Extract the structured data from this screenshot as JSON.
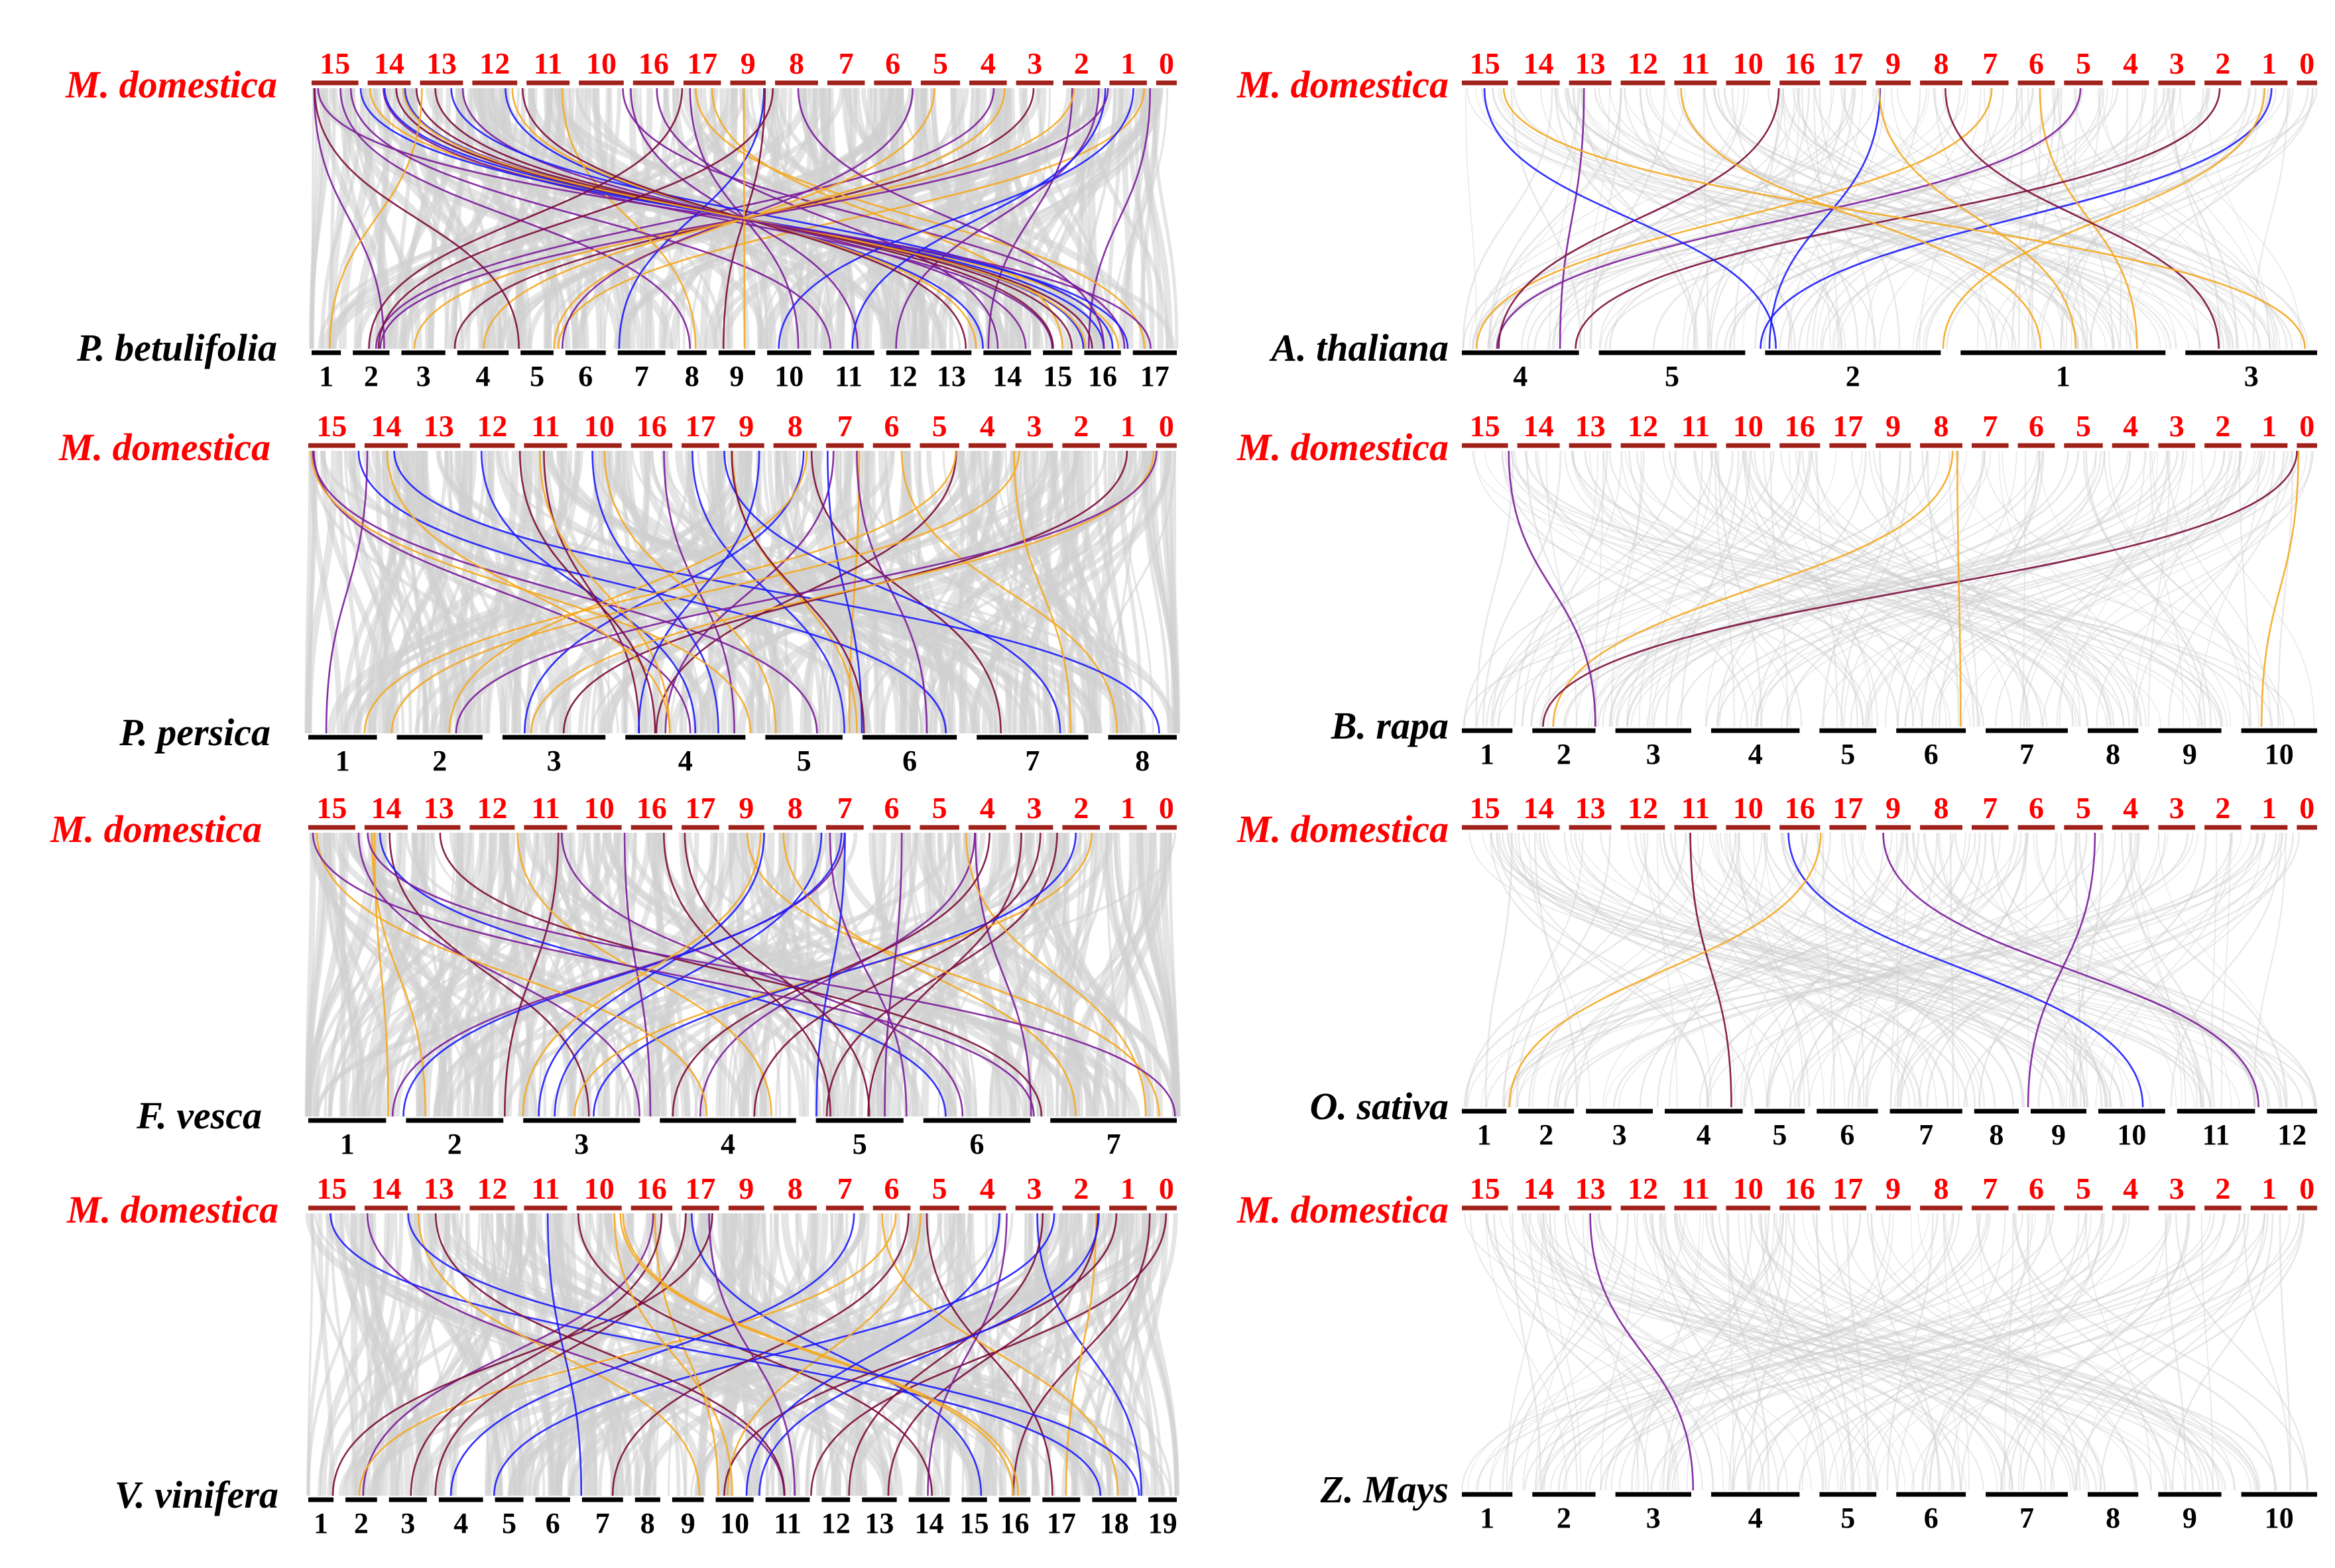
{
  "colors": {
    "reference": "#ff0000",
    "target": "#000000",
    "background_links": "#cfcfcf",
    "link_colors": [
      "#1a1aff",
      "#7a1a9a",
      "#f4a820",
      "#7a0a3a"
    ]
  },
  "reference_species": "M. domestica",
  "reference_chromosomes": [
    "15",
    "14",
    "13",
    "12",
    "11",
    "10",
    "16",
    "17",
    "9",
    "8",
    "7",
    "6",
    "5",
    "4",
    "3",
    "2",
    "1",
    "0"
  ],
  "panels": [
    {
      "target": "P. betulifolia",
      "chromosomes": [
        "1",
        "2",
        "3",
        "4",
        "5",
        "6",
        "7",
        "8",
        "9",
        "10",
        "11",
        "12",
        "13",
        "14",
        "15",
        "16",
        "17"
      ],
      "background": "dense"
    },
    {
      "target": "A.  thaliana",
      "chromosomes": [
        "4",
        "5",
        "2",
        "1",
        "3"
      ],
      "background": "light"
    },
    {
      "target": "P. persica",
      "chromosomes": [
        "1",
        "2",
        "3",
        "4",
        "5",
        "6",
        "7",
        "8"
      ],
      "background": "dense"
    },
    {
      "target": "B. rapa",
      "chromosomes": [
        "1",
        "2",
        "3",
        "4",
        "5",
        "6",
        "7",
        "8",
        "9",
        "10"
      ],
      "background": "light"
    },
    {
      "target": "F. vesca",
      "chromosomes": [
        "1",
        "2",
        "3",
        "4",
        "5",
        "6",
        "7"
      ],
      "background": "dense"
    },
    {
      "target": "O. sativa",
      "chromosomes": [
        "1",
        "2",
        "3",
        "4",
        "5",
        "6",
        "7",
        "8",
        "9",
        "10",
        "11",
        "12"
      ],
      "background": "light"
    },
    {
      "target": "V. vinifera",
      "chromosomes": [
        "1",
        "2",
        "3",
        "4",
        "5",
        "6",
        "7",
        "8",
        "9",
        "10",
        "11",
        "12",
        "13",
        "14",
        "15",
        "16",
        "17",
        "18",
        "19"
      ],
      "background": "dense"
    },
    {
      "target": "Z. Mays",
      "chromosomes": [
        "1",
        "2",
        "3",
        "4",
        "5",
        "6",
        "7",
        "8",
        "9",
        "10"
      ],
      "background": "light"
    }
  ]
}
